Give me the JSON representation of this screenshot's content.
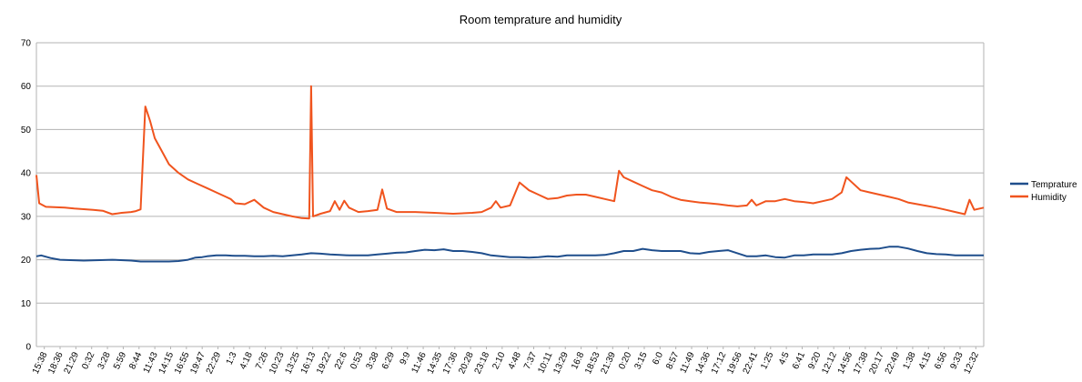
{
  "chart_data": {
    "type": "line",
    "title": "Room temprature and humidity",
    "xlabel": "",
    "ylabel": "",
    "ylim": [
      0,
      70
    ],
    "yticks": [
      0,
      10,
      20,
      30,
      40,
      50,
      60,
      70
    ],
    "grid": "horizontal",
    "legend_position": "right",
    "x_ticks": [
      "15:38",
      "18:36",
      "21:29",
      "0:32",
      "3:28",
      "5:59",
      "8:44",
      "11:43",
      "14:15",
      "16:55",
      "19:47",
      "22:29",
      "1:3",
      "4:18",
      "7:26",
      "10:23",
      "13:25",
      "16:13",
      "19:22",
      "22:6",
      "0:53",
      "3:38",
      "6:29",
      "9:9",
      "11:46",
      "14:35",
      "17:36",
      "20:28",
      "23:18",
      "2:10",
      "4:48",
      "7:37",
      "10:11",
      "13:29",
      "16:8",
      "18:53",
      "21:39",
      "0:20",
      "3:15",
      "6:0",
      "8:57",
      "11:49",
      "14:36",
      "17:12",
      "19:56",
      "22:41",
      "1:25",
      "4:5",
      "6:41",
      "9:20",
      "12:12",
      "14:56",
      "17:38",
      "20:17",
      "22:49",
      "1:38",
      "4:15",
      "6:56",
      "9:33",
      "12:32"
    ],
    "x_index_range": [
      0,
      100
    ],
    "series": [
      {
        "name": "Temprature",
        "color": "#1f4e8c",
        "points": [
          [
            0,
            20.8
          ],
          [
            0.5,
            21
          ],
          [
            1.5,
            20.4
          ],
          [
            2.5,
            20
          ],
          [
            5,
            19.8
          ],
          [
            8,
            20
          ],
          [
            10,
            19.8
          ],
          [
            11,
            19.6
          ],
          [
            14,
            19.6
          ],
          [
            15,
            19.7
          ],
          [
            16,
            20
          ],
          [
            16.8,
            20.5
          ],
          [
            17.5,
            20.6
          ],
          [
            18,
            20.8
          ],
          [
            19,
            21
          ],
          [
            20,
            21
          ],
          [
            21,
            20.9
          ],
          [
            22,
            20.9
          ],
          [
            23,
            20.8
          ],
          [
            24,
            20.8
          ],
          [
            25,
            20.9
          ],
          [
            26,
            20.8
          ],
          [
            27,
            21
          ],
          [
            28,
            21.2
          ],
          [
            29,
            21.5
          ],
          [
            30,
            21.4
          ],
          [
            31,
            21.2
          ],
          [
            32,
            21.1
          ],
          [
            33,
            21
          ],
          [
            34,
            21
          ],
          [
            35,
            21
          ],
          [
            36,
            21.2
          ],
          [
            37,
            21.4
          ],
          [
            38,
            21.6
          ],
          [
            39,
            21.7
          ],
          [
            40,
            22
          ],
          [
            41,
            22.3
          ],
          [
            42,
            22.2
          ],
          [
            43,
            22.4
          ],
          [
            44,
            22
          ],
          [
            45,
            22
          ],
          [
            46,
            21.8
          ],
          [
            47,
            21.5
          ],
          [
            48,
            21
          ],
          [
            49,
            20.8
          ],
          [
            50,
            20.6
          ],
          [
            51,
            20.6
          ],
          [
            52,
            20.5
          ],
          [
            53,
            20.6
          ],
          [
            54,
            20.8
          ],
          [
            55,
            20.7
          ],
          [
            56,
            21
          ],
          [
            57,
            21
          ],
          [
            58,
            21
          ],
          [
            59,
            21
          ],
          [
            60,
            21.1
          ],
          [
            61,
            21.5
          ],
          [
            62,
            22
          ],
          [
            63,
            22
          ],
          [
            64,
            22.5
          ],
          [
            65,
            22.2
          ],
          [
            66,
            22
          ],
          [
            67,
            22
          ],
          [
            68,
            22
          ],
          [
            69,
            21.5
          ],
          [
            70,
            21.4
          ],
          [
            71,
            21.8
          ],
          [
            72,
            22
          ],
          [
            73,
            22.2
          ],
          [
            74,
            21.5
          ],
          [
            75,
            20.8
          ],
          [
            76,
            20.8
          ],
          [
            77,
            21
          ],
          [
            78,
            20.6
          ],
          [
            79,
            20.5
          ],
          [
            80,
            21
          ],
          [
            81,
            21
          ],
          [
            82,
            21.2
          ],
          [
            83,
            21.2
          ],
          [
            84,
            21.2
          ],
          [
            85,
            21.5
          ],
          [
            86,
            22
          ],
          [
            87,
            22.3
          ],
          [
            88,
            22.5
          ],
          [
            89,
            22.6
          ],
          [
            90,
            23
          ],
          [
            91,
            23
          ],
          [
            92,
            22.6
          ],
          [
            93,
            22
          ],
          [
            94,
            21.5
          ],
          [
            95,
            21.3
          ],
          [
            96,
            21.2
          ],
          [
            97,
            21
          ],
          [
            98,
            21
          ],
          [
            99,
            21
          ],
          [
            100,
            21
          ]
        ]
      },
      {
        "name": "Humidity",
        "color": "#f0541e",
        "points": [
          [
            0,
            39.5
          ],
          [
            0.3,
            33
          ],
          [
            1,
            32.2
          ],
          [
            3,
            32
          ],
          [
            4,
            31.8
          ],
          [
            6,
            31.5
          ],
          [
            7,
            31.3
          ],
          [
            8,
            30.5
          ],
          [
            9,
            30.8
          ],
          [
            10,
            31
          ],
          [
            10.5,
            31.2
          ],
          [
            11,
            31.6
          ],
          [
            11.5,
            55.3
          ],
          [
            12,
            52
          ],
          [
            12.5,
            48
          ],
          [
            13,
            46
          ],
          [
            14,
            42
          ],
          [
            15,
            40
          ],
          [
            16,
            38.5
          ],
          [
            17,
            37.5
          ],
          [
            18,
            36.5
          ],
          [
            19,
            35.5
          ],
          [
            20,
            34.5
          ],
          [
            20.5,
            34
          ],
          [
            21,
            33
          ],
          [
            22,
            32.8
          ],
          [
            23,
            33.8
          ],
          [
            24,
            32
          ],
          [
            25,
            31
          ],
          [
            26,
            30.5
          ],
          [
            27,
            30
          ],
          [
            28,
            29.6
          ],
          [
            28.8,
            29.5
          ],
          [
            29,
            60
          ],
          [
            29.2,
            30
          ],
          [
            30,
            30.6
          ],
          [
            31,
            31.2
          ],
          [
            31.5,
            33.5
          ],
          [
            32,
            31.5
          ],
          [
            32.5,
            33.6
          ],
          [
            33,
            32
          ],
          [
            34,
            31
          ],
          [
            35,
            31.2
          ],
          [
            36,
            31.5
          ],
          [
            36.5,
            36.2
          ],
          [
            37,
            31.8
          ],
          [
            38,
            31
          ],
          [
            40,
            31
          ],
          [
            42,
            30.8
          ],
          [
            44,
            30.6
          ],
          [
            46,
            30.8
          ],
          [
            47,
            31
          ],
          [
            48,
            32
          ],
          [
            48.5,
            33.5
          ],
          [
            49,
            32
          ],
          [
            50,
            32.5
          ],
          [
            51,
            37.8
          ],
          [
            52,
            36
          ],
          [
            53,
            35
          ],
          [
            54,
            34
          ],
          [
            55,
            34.2
          ],
          [
            56,
            34.8
          ],
          [
            57,
            35
          ],
          [
            58,
            35
          ],
          [
            59,
            34.5
          ],
          [
            60,
            34
          ],
          [
            61,
            33.5
          ],
          [
            61.5,
            40.5
          ],
          [
            62,
            39
          ],
          [
            63,
            38
          ],
          [
            64,
            37
          ],
          [
            65,
            36
          ],
          [
            66,
            35.5
          ],
          [
            67,
            34.5
          ],
          [
            68,
            33.8
          ],
          [
            69,
            33.5
          ],
          [
            70,
            33.2
          ],
          [
            71,
            33
          ],
          [
            72,
            32.8
          ],
          [
            73,
            32.5
          ],
          [
            74,
            32.3
          ],
          [
            75,
            32.5
          ],
          [
            75.5,
            33.8
          ],
          [
            76,
            32.5
          ],
          [
            77,
            33.5
          ],
          [
            78,
            33.5
          ],
          [
            79,
            34
          ],
          [
            80,
            33.5
          ],
          [
            81,
            33.3
          ],
          [
            82,
            33
          ],
          [
            83,
            33.5
          ],
          [
            84,
            34
          ],
          [
            85,
            35.5
          ],
          [
            85.5,
            39
          ],
          [
            86,
            38
          ],
          [
            87,
            36
          ],
          [
            88,
            35.5
          ],
          [
            89,
            35
          ],
          [
            90,
            34.5
          ],
          [
            91,
            34
          ],
          [
            92,
            33.2
          ],
          [
            93,
            32.8
          ],
          [
            94,
            32.4
          ],
          [
            95,
            32
          ],
          [
            96,
            31.5
          ],
          [
            97,
            31
          ],
          [
            98,
            30.5
          ],
          [
            98.5,
            33.8
          ],
          [
            99,
            31.5
          ],
          [
            100,
            32
          ]
        ]
      }
    ]
  }
}
